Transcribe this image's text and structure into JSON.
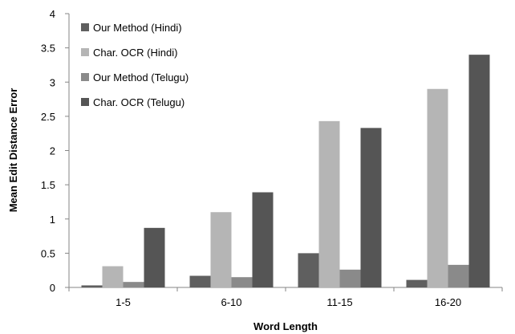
{
  "chart_data": {
    "type": "bar",
    "title": "",
    "xlabel": "Word Length",
    "ylabel": "Mean Edit Distance Error",
    "categories": [
      "1-5",
      "6-10",
      "11-15",
      "16-20"
    ],
    "ylim": [
      0,
      4
    ],
    "yticks": [
      "0",
      "0.5",
      "1",
      "1.5",
      "2",
      "2.5",
      "3",
      "3.5",
      "4"
    ],
    "grid": false,
    "legend_position": "top-left",
    "series": [
      {
        "name": "Our Method (Hindi)",
        "color": "#5f5f5f",
        "values": [
          0.03,
          0.17,
          0.5,
          0.11
        ]
      },
      {
        "name": "Char. OCR (Hindi)",
        "color": "#b5b5b5",
        "values": [
          0.31,
          1.1,
          2.43,
          2.9
        ]
      },
      {
        "name": "Our Method (Telugu)",
        "color": "#8a8a8a",
        "values": [
          0.08,
          0.15,
          0.26,
          0.33
        ]
      },
      {
        "name": "Char. OCR (Telugu)",
        "color": "#555555",
        "values": [
          0.87,
          1.39,
          2.33,
          3.4
        ]
      }
    ]
  }
}
